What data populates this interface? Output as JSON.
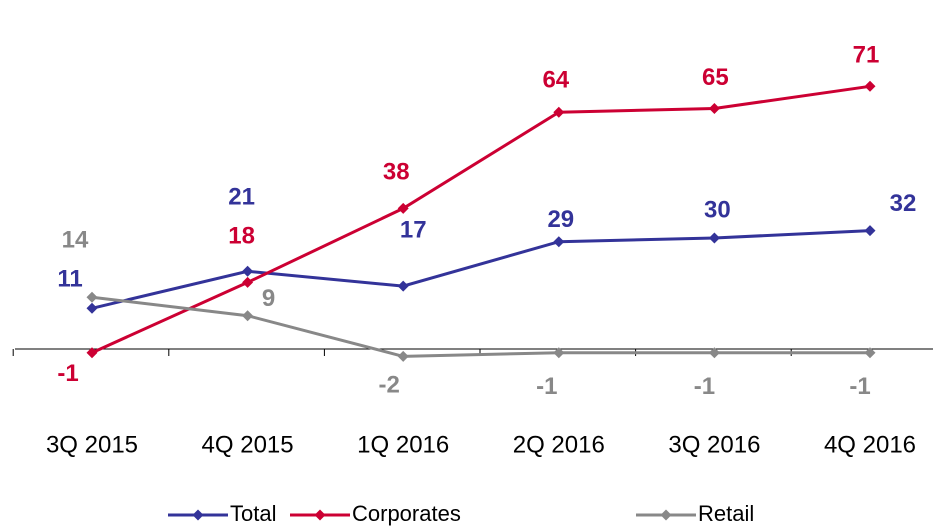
{
  "chart_data": {
    "type": "line",
    "categories": [
      "3Q 2015",
      "4Q 2015",
      "1Q 2016",
      "2Q 2016",
      "3Q 2016",
      "4Q 2016"
    ],
    "series": [
      {
        "name": "Total",
        "color": "#333399",
        "values": [
          11,
          21,
          17,
          29,
          30,
          32
        ]
      },
      {
        "name": "Corporates",
        "color": "#cc0033",
        "values": [
          -1,
          18,
          38,
          64,
          65,
          71
        ]
      },
      {
        "name": "Retail",
        "color": "#888888",
        "values": [
          14,
          9,
          -2,
          -1,
          -1,
          -1
        ]
      }
    ],
    "ylim": [
      -5,
      80
    ],
    "legend": "bottom"
  }
}
